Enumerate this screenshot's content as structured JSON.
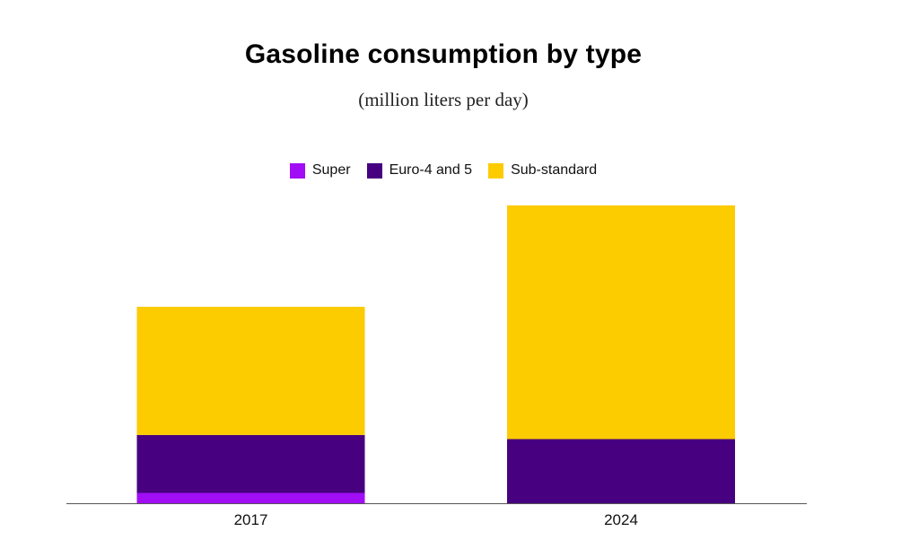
{
  "chart_data": {
    "type": "bar",
    "stacked": true,
    "title": "Gasoline consumption by type",
    "subtitle": "(million liters per day)",
    "categories": [
      "2017",
      "2024"
    ],
    "series": [
      {
        "name": "Super",
        "color": "#a10ef5",
        "values": [
          0.5,
          0
        ]
      },
      {
        "name": "Euro-4 and 5",
        "color": "#47007f",
        "values": [
          2.8,
          3.1
        ]
      },
      {
        "name": "Sub-standard",
        "color": "#fccb00",
        "values": [
          6.2,
          11.3
        ]
      }
    ],
    "ylim": [
      0,
      14.4
    ],
    "grid": false,
    "legend_position": "top-center",
    "xlabel": "",
    "ylabel": ""
  }
}
